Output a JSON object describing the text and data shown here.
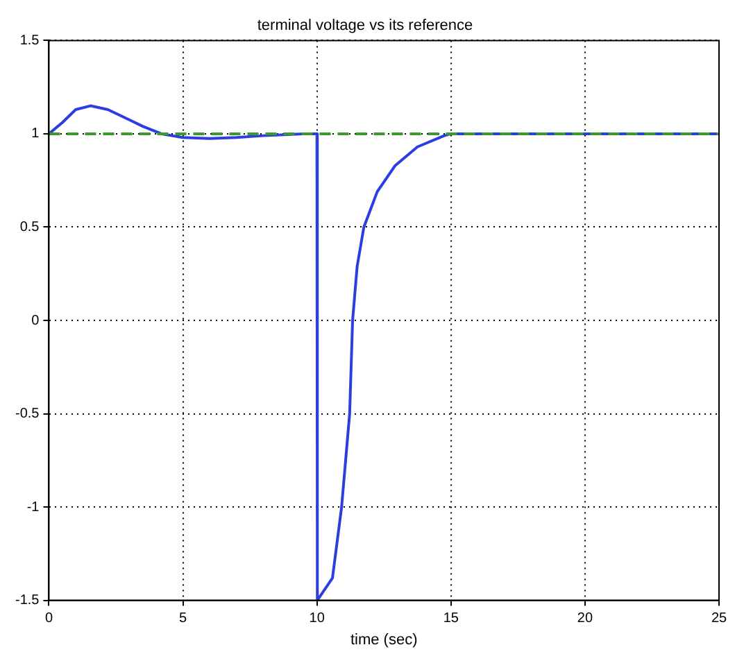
{
  "chart_data": {
    "type": "line",
    "title": "terminal voltage vs its reference",
    "xlabel": "time (sec)",
    "xlim": [
      0,
      25
    ],
    "xticks": [
      0,
      5,
      10,
      15,
      20,
      25
    ],
    "ylim": [
      -1.5,
      1.5
    ],
    "yticks": [
      -1.5,
      -1,
      -0.5,
      0,
      0.5,
      1,
      1.5
    ],
    "grid": true,
    "legend": false,
    "marker": "none",
    "series": [
      {
        "color": "#2b3fe0",
        "line_style": "solid",
        "x": [
          0,
          0.5,
          1,
          1.55,
          2.2,
          3,
          3.5,
          4.2,
          5,
          6,
          7,
          8,
          9.5,
          10,
          10,
          10.03,
          10.58,
          10.92,
          11.22,
          11.33,
          11.5,
          11.75,
          12.25,
          12.92,
          13.75,
          14.75,
          15,
          20,
          25
        ],
        "values": [
          1,
          1.06,
          1.13,
          1.15,
          1.13,
          1.075,
          1.04,
          1,
          0.98,
          0.975,
          0.98,
          0.99,
          1,
          1,
          -1.5,
          -1.5,
          -1.38,
          -1,
          -0.5,
          0,
          0.29,
          0.5,
          0.69,
          0.83,
          0.93,
          0.99,
          1,
          1,
          1
        ]
      },
      {
        "color": "#3a9a2a",
        "line_style": "dashed",
        "x": [
          0,
          25
        ],
        "values": [
          1,
          1
        ]
      }
    ]
  }
}
